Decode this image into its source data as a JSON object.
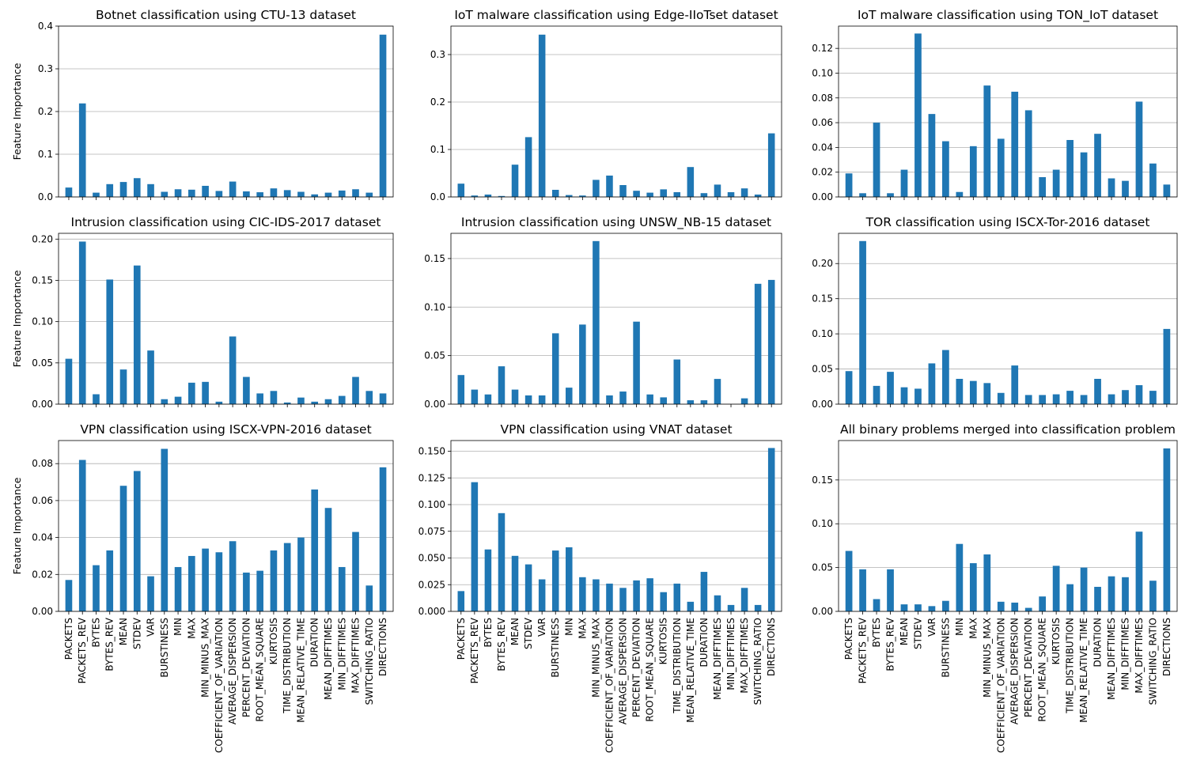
{
  "figure": {
    "ylabel": "Feature Importance"
  },
  "colors": {
    "bar": "#1f77b4",
    "grid": "#b0b0b0",
    "axis": "#000000",
    "background": "#ffffff"
  },
  "chart_data": [
    {
      "type": "bar",
      "title": "Botnet classification using CTU-13 dataset",
      "ylabel": "Feature Importance",
      "ylim": [
        0,
        0.4
      ],
      "yticks": [
        0.0,
        0.1,
        0.2,
        0.3,
        0.4
      ],
      "ytick_labels": [
        "0.0",
        "0.1",
        "0.2",
        "0.3",
        "0.4"
      ],
      "grid": "y",
      "categories": [
        "PACKETS",
        "PACKETS_REV",
        "BYTES",
        "BYTES_REV",
        "MEAN",
        "STDEV",
        "VAR",
        "BURSTINESS",
        "MIN",
        "MAX",
        "MIN_MINUS_MAX",
        "COEFFICIENT_OF_VARIATION",
        "AVERAGE_DISPERSION",
        "PERCENT_DEVIATION",
        "ROOT_MEAN_SQUARE",
        "KURTOSIS",
        "TIME_DISTRIBUTION",
        "MEAN_RELATIVE_TIME",
        "DURATION",
        "MEAN_DIFFTIMES",
        "MIN_DIFFTIMES",
        "MAX_DIFFTIMES",
        "SWITCHING_RATIO",
        "DIRECTIONS"
      ],
      "values": [
        0.022,
        0.219,
        0.01,
        0.03,
        0.035,
        0.044,
        0.03,
        0.012,
        0.018,
        0.017,
        0.026,
        0.014,
        0.036,
        0.013,
        0.011,
        0.02,
        0.016,
        0.012,
        0.006,
        0.01,
        0.015,
        0.018,
        0.01,
        0.38
      ]
    },
    {
      "type": "bar",
      "title": "IoT malware classification using Edge-IIoTset dataset",
      "ylim": [
        0,
        0.36
      ],
      "yticks": [
        0.0,
        0.1,
        0.2,
        0.3
      ],
      "ytick_labels": [
        "0.0",
        "0.1",
        "0.2",
        "0.3"
      ],
      "grid": "y",
      "categories": [
        "PACKETS",
        "PACKETS_REV",
        "BYTES",
        "BYTES_REV",
        "MEAN",
        "STDEV",
        "VAR",
        "BURSTINESS",
        "MIN",
        "MAX",
        "MIN_MINUS_MAX",
        "COEFFICIENT_OF_VARIATION",
        "AVERAGE_DISPERSION",
        "PERCENT_DEVIATION",
        "ROOT_MEAN_SQUARE",
        "KURTOSIS",
        "TIME_DISTRIBUTION",
        "MEAN_RELATIVE_TIME",
        "DURATION",
        "MEAN_DIFFTIMES",
        "MIN_DIFFTIMES",
        "MAX_DIFFTIMES",
        "SWITCHING_RATIO",
        "DIRECTIONS"
      ],
      "values": [
        0.028,
        0.003,
        0.005,
        0.002,
        0.068,
        0.126,
        0.342,
        0.015,
        0.004,
        0.003,
        0.036,
        0.045,
        0.025,
        0.013,
        0.009,
        0.016,
        0.01,
        0.063,
        0.008,
        0.026,
        0.01,
        0.018,
        0.005,
        0.134
      ]
    },
    {
      "type": "bar",
      "title": "IoT malware classification using TON_IoT dataset",
      "ylim": [
        0,
        0.138
      ],
      "yticks": [
        0.0,
        0.02,
        0.04,
        0.06,
        0.08,
        0.1,
        0.12
      ],
      "ytick_labels": [
        "0.00",
        "0.02",
        "0.04",
        "0.06",
        "0.08",
        "0.10",
        "0.12"
      ],
      "grid": "y",
      "categories": [
        "PACKETS",
        "PACKETS_REV",
        "BYTES",
        "BYTES_REV",
        "MEAN",
        "STDEV",
        "VAR",
        "BURSTINESS",
        "MIN",
        "MAX",
        "MIN_MINUS_MAX",
        "COEFFICIENT_OF_VARIATION",
        "AVERAGE_DISPERSION",
        "PERCENT_DEVIATION",
        "ROOT_MEAN_SQUARE",
        "KURTOSIS",
        "TIME_DISTRIBUTION",
        "MEAN_RELATIVE_TIME",
        "DURATION",
        "MEAN_DIFFTIMES",
        "MIN_DIFFTIMES",
        "MAX_DIFFTIMES",
        "SWITCHING_RATIO",
        "DIRECTIONS"
      ],
      "values": [
        0.019,
        0.003,
        0.06,
        0.003,
        0.022,
        0.132,
        0.067,
        0.045,
        0.004,
        0.041,
        0.09,
        0.047,
        0.085,
        0.07,
        0.016,
        0.022,
        0.046,
        0.036,
        0.051,
        0.015,
        0.013,
        0.077,
        0.027,
        0.01
      ]
    },
    {
      "type": "bar",
      "title": "Intrusion classification using CIC-IDS-2017 dataset",
      "ylabel": "Feature Importance",
      "ylim": [
        0,
        0.207
      ],
      "yticks": [
        0.0,
        0.05,
        0.1,
        0.15,
        0.2
      ],
      "ytick_labels": [
        "0.00",
        "0.05",
        "0.10",
        "0.15",
        "0.20"
      ],
      "grid": "y",
      "categories": [
        "PACKETS",
        "PACKETS_REV",
        "BYTES",
        "BYTES_REV",
        "MEAN",
        "STDEV",
        "VAR",
        "BURSTINESS",
        "MIN",
        "MAX",
        "MIN_MINUS_MAX",
        "COEFFICIENT_OF_VARIATION",
        "AVERAGE_DISPERSION",
        "PERCENT_DEVIATION",
        "ROOT_MEAN_SQUARE",
        "KURTOSIS",
        "TIME_DISTRIBUTION",
        "MEAN_RELATIVE_TIME",
        "DURATION",
        "MEAN_DIFFTIMES",
        "MIN_DIFFTIMES",
        "MAX_DIFFTIMES",
        "SWITCHING_RATIO",
        "DIRECTIONS"
      ],
      "values": [
        0.055,
        0.197,
        0.012,
        0.151,
        0.042,
        0.168,
        0.065,
        0.006,
        0.009,
        0.026,
        0.027,
        0.003,
        0.082,
        0.033,
        0.013,
        0.016,
        0.002,
        0.008,
        0.003,
        0.006,
        0.01,
        0.033,
        0.016,
        0.013
      ]
    },
    {
      "type": "bar",
      "title": "Intrusion classification using UNSW_NB-15 dataset",
      "ylim": [
        0,
        0.176
      ],
      "yticks": [
        0.0,
        0.05,
        0.1,
        0.15
      ],
      "ytick_labels": [
        "0.00",
        "0.05",
        "0.10",
        "0.15"
      ],
      "grid": "y",
      "categories": [
        "PACKETS",
        "PACKETS_REV",
        "BYTES",
        "BYTES_REV",
        "MEAN",
        "STDEV",
        "VAR",
        "BURSTINESS",
        "MIN",
        "MAX",
        "MIN_MINUS_MAX",
        "COEFFICIENT_OF_VARIATION",
        "AVERAGE_DISPERSION",
        "PERCENT_DEVIATION",
        "ROOT_MEAN_SQUARE",
        "KURTOSIS",
        "TIME_DISTRIBUTION",
        "MEAN_RELATIVE_TIME",
        "DURATION",
        "MEAN_DIFFTIMES",
        "MIN_DIFFTIMES",
        "MAX_DIFFTIMES",
        "SWITCHING_RATIO",
        "DIRECTIONS"
      ],
      "values": [
        0.03,
        0.015,
        0.01,
        0.039,
        0.015,
        0.009,
        0.009,
        0.073,
        0.017,
        0.082,
        0.168,
        0.009,
        0.013,
        0.085,
        0.01,
        0.007,
        0.046,
        0.004,
        0.004,
        0.026,
        0.0,
        0.006,
        0.124,
        0.128
      ]
    },
    {
      "type": "bar",
      "title": "TOR classification using ISCX-Tor-2016 dataset",
      "ylim": [
        0,
        0.243
      ],
      "yticks": [
        0.0,
        0.05,
        0.1,
        0.15,
        0.2
      ],
      "ytick_labels": [
        "0.00",
        "0.05",
        "0.10",
        "0.15",
        "0.20"
      ],
      "grid": "y",
      "categories": [
        "PACKETS",
        "PACKETS_REV",
        "BYTES",
        "BYTES_REV",
        "MEAN",
        "STDEV",
        "VAR",
        "BURSTINESS",
        "MIN",
        "MAX",
        "MIN_MINUS_MAX",
        "COEFFICIENT_OF_VARIATION",
        "AVERAGE_DISPERSION",
        "PERCENT_DEVIATION",
        "ROOT_MEAN_SQUARE",
        "KURTOSIS",
        "TIME_DISTRIBUTION",
        "MEAN_RELATIVE_TIME",
        "DURATION",
        "MEAN_DIFFTIMES",
        "MIN_DIFFTIMES",
        "MAX_DIFFTIMES",
        "SWITCHING_RATIO",
        "DIRECTIONS"
      ],
      "values": [
        0.047,
        0.232,
        0.026,
        0.046,
        0.024,
        0.022,
        0.058,
        0.077,
        0.036,
        0.033,
        0.03,
        0.016,
        0.055,
        0.013,
        0.013,
        0.014,
        0.019,
        0.013,
        0.036,
        0.014,
        0.02,
        0.027,
        0.019,
        0.107
      ]
    },
    {
      "type": "bar",
      "title": "VPN classification using ISCX-VPN-2016 dataset",
      "ylabel": "Feature Importance",
      "ylim": [
        0,
        0.0925
      ],
      "yticks": [
        0.0,
        0.02,
        0.04,
        0.06,
        0.08
      ],
      "ytick_labels": [
        "0.00",
        "0.02",
        "0.04",
        "0.06",
        "0.08"
      ],
      "grid": "y",
      "categories": [
        "PACKETS",
        "PACKETS_REV",
        "BYTES",
        "BYTES_REV",
        "MEAN",
        "STDEV",
        "VAR",
        "BURSTINESS",
        "MIN",
        "MAX",
        "MIN_MINUS_MAX",
        "COEFFICIENT_OF_VARIATION",
        "AVERAGE_DISPERSION",
        "PERCENT_DEVIATION",
        "ROOT_MEAN_SQUARE",
        "KURTOSIS",
        "TIME_DISTRIBUTION",
        "MEAN_RELATIVE_TIME",
        "DURATION",
        "MEAN_DIFFTIMES",
        "MIN_DIFFTIMES",
        "MAX_DIFFTIMES",
        "SWITCHING_RATIO",
        "DIRECTIONS"
      ],
      "values": [
        0.017,
        0.082,
        0.025,
        0.033,
        0.068,
        0.076,
        0.019,
        0.088,
        0.024,
        0.03,
        0.034,
        0.032,
        0.038,
        0.021,
        0.022,
        0.033,
        0.037,
        0.04,
        0.066,
        0.056,
        0.024,
        0.043,
        0.014,
        0.078
      ]
    },
    {
      "type": "bar",
      "title": "VPN classification using VNAT dataset",
      "ylim": [
        0,
        0.16
      ],
      "yticks": [
        0.0,
        0.025,
        0.05,
        0.075,
        0.1,
        0.125,
        0.15
      ],
      "ytick_labels": [
        "0.000",
        "0.025",
        "0.050",
        "0.075",
        "0.100",
        "0.125",
        "0.150"
      ],
      "grid": "y",
      "categories": [
        "PACKETS",
        "PACKETS_REV",
        "BYTES",
        "BYTES_REV",
        "MEAN",
        "STDEV",
        "VAR",
        "BURSTINESS",
        "MIN",
        "MAX",
        "MIN_MINUS_MAX",
        "COEFFICIENT_OF_VARIATION",
        "AVERAGE_DISPERSION",
        "PERCENT_DEVIATION",
        "ROOT_MEAN_SQUARE",
        "KURTOSIS",
        "TIME_DISTRIBUTION",
        "MEAN_RELATIVE_TIME",
        "DURATION",
        "MEAN_DIFFTIMES",
        "MIN_DIFFTIMES",
        "MAX_DIFFTIMES",
        "SWITCHING_RATIO",
        "DIRECTIONS"
      ],
      "values": [
        0.019,
        0.121,
        0.058,
        0.092,
        0.052,
        0.044,
        0.03,
        0.057,
        0.06,
        0.032,
        0.03,
        0.026,
        0.022,
        0.029,
        0.031,
        0.018,
        0.026,
        0.009,
        0.037,
        0.015,
        0.006,
        0.022,
        0.006,
        0.153
      ]
    },
    {
      "type": "bar",
      "title": "All binary problems merged into classification problem",
      "ylim": [
        0,
        0.195
      ],
      "yticks": [
        0.0,
        0.05,
        0.1,
        0.15
      ],
      "ytick_labels": [
        "0.00",
        "0.05",
        "0.10",
        "0.15"
      ],
      "grid": "y",
      "categories": [
        "PACKETS",
        "PACKETS_REV",
        "BYTES",
        "BYTES_REV",
        "MEAN",
        "STDEV",
        "VAR",
        "BURSTINESS",
        "MIN",
        "MAX",
        "MIN_MINUS_MAX",
        "COEFFICIENT_OF_VARIATION",
        "AVERAGE_DISPERSION",
        "PERCENT_DEVIATION",
        "ROOT_MEAN_SQUARE",
        "KURTOSIS",
        "TIME_DISTRIBUTION",
        "MEAN_RELATIVE_TIME",
        "DURATION",
        "MEAN_DIFFTIMES",
        "MIN_DIFFTIMES",
        "MAX_DIFFTIMES",
        "SWITCHING_RATIO",
        "DIRECTIONS"
      ],
      "values": [
        0.069,
        0.048,
        0.014,
        0.048,
        0.008,
        0.008,
        0.006,
        0.012,
        0.077,
        0.055,
        0.065,
        0.011,
        0.01,
        0.004,
        0.017,
        0.052,
        0.031,
        0.05,
        0.028,
        0.04,
        0.039,
        0.091,
        0.035,
        0.186
      ]
    }
  ]
}
